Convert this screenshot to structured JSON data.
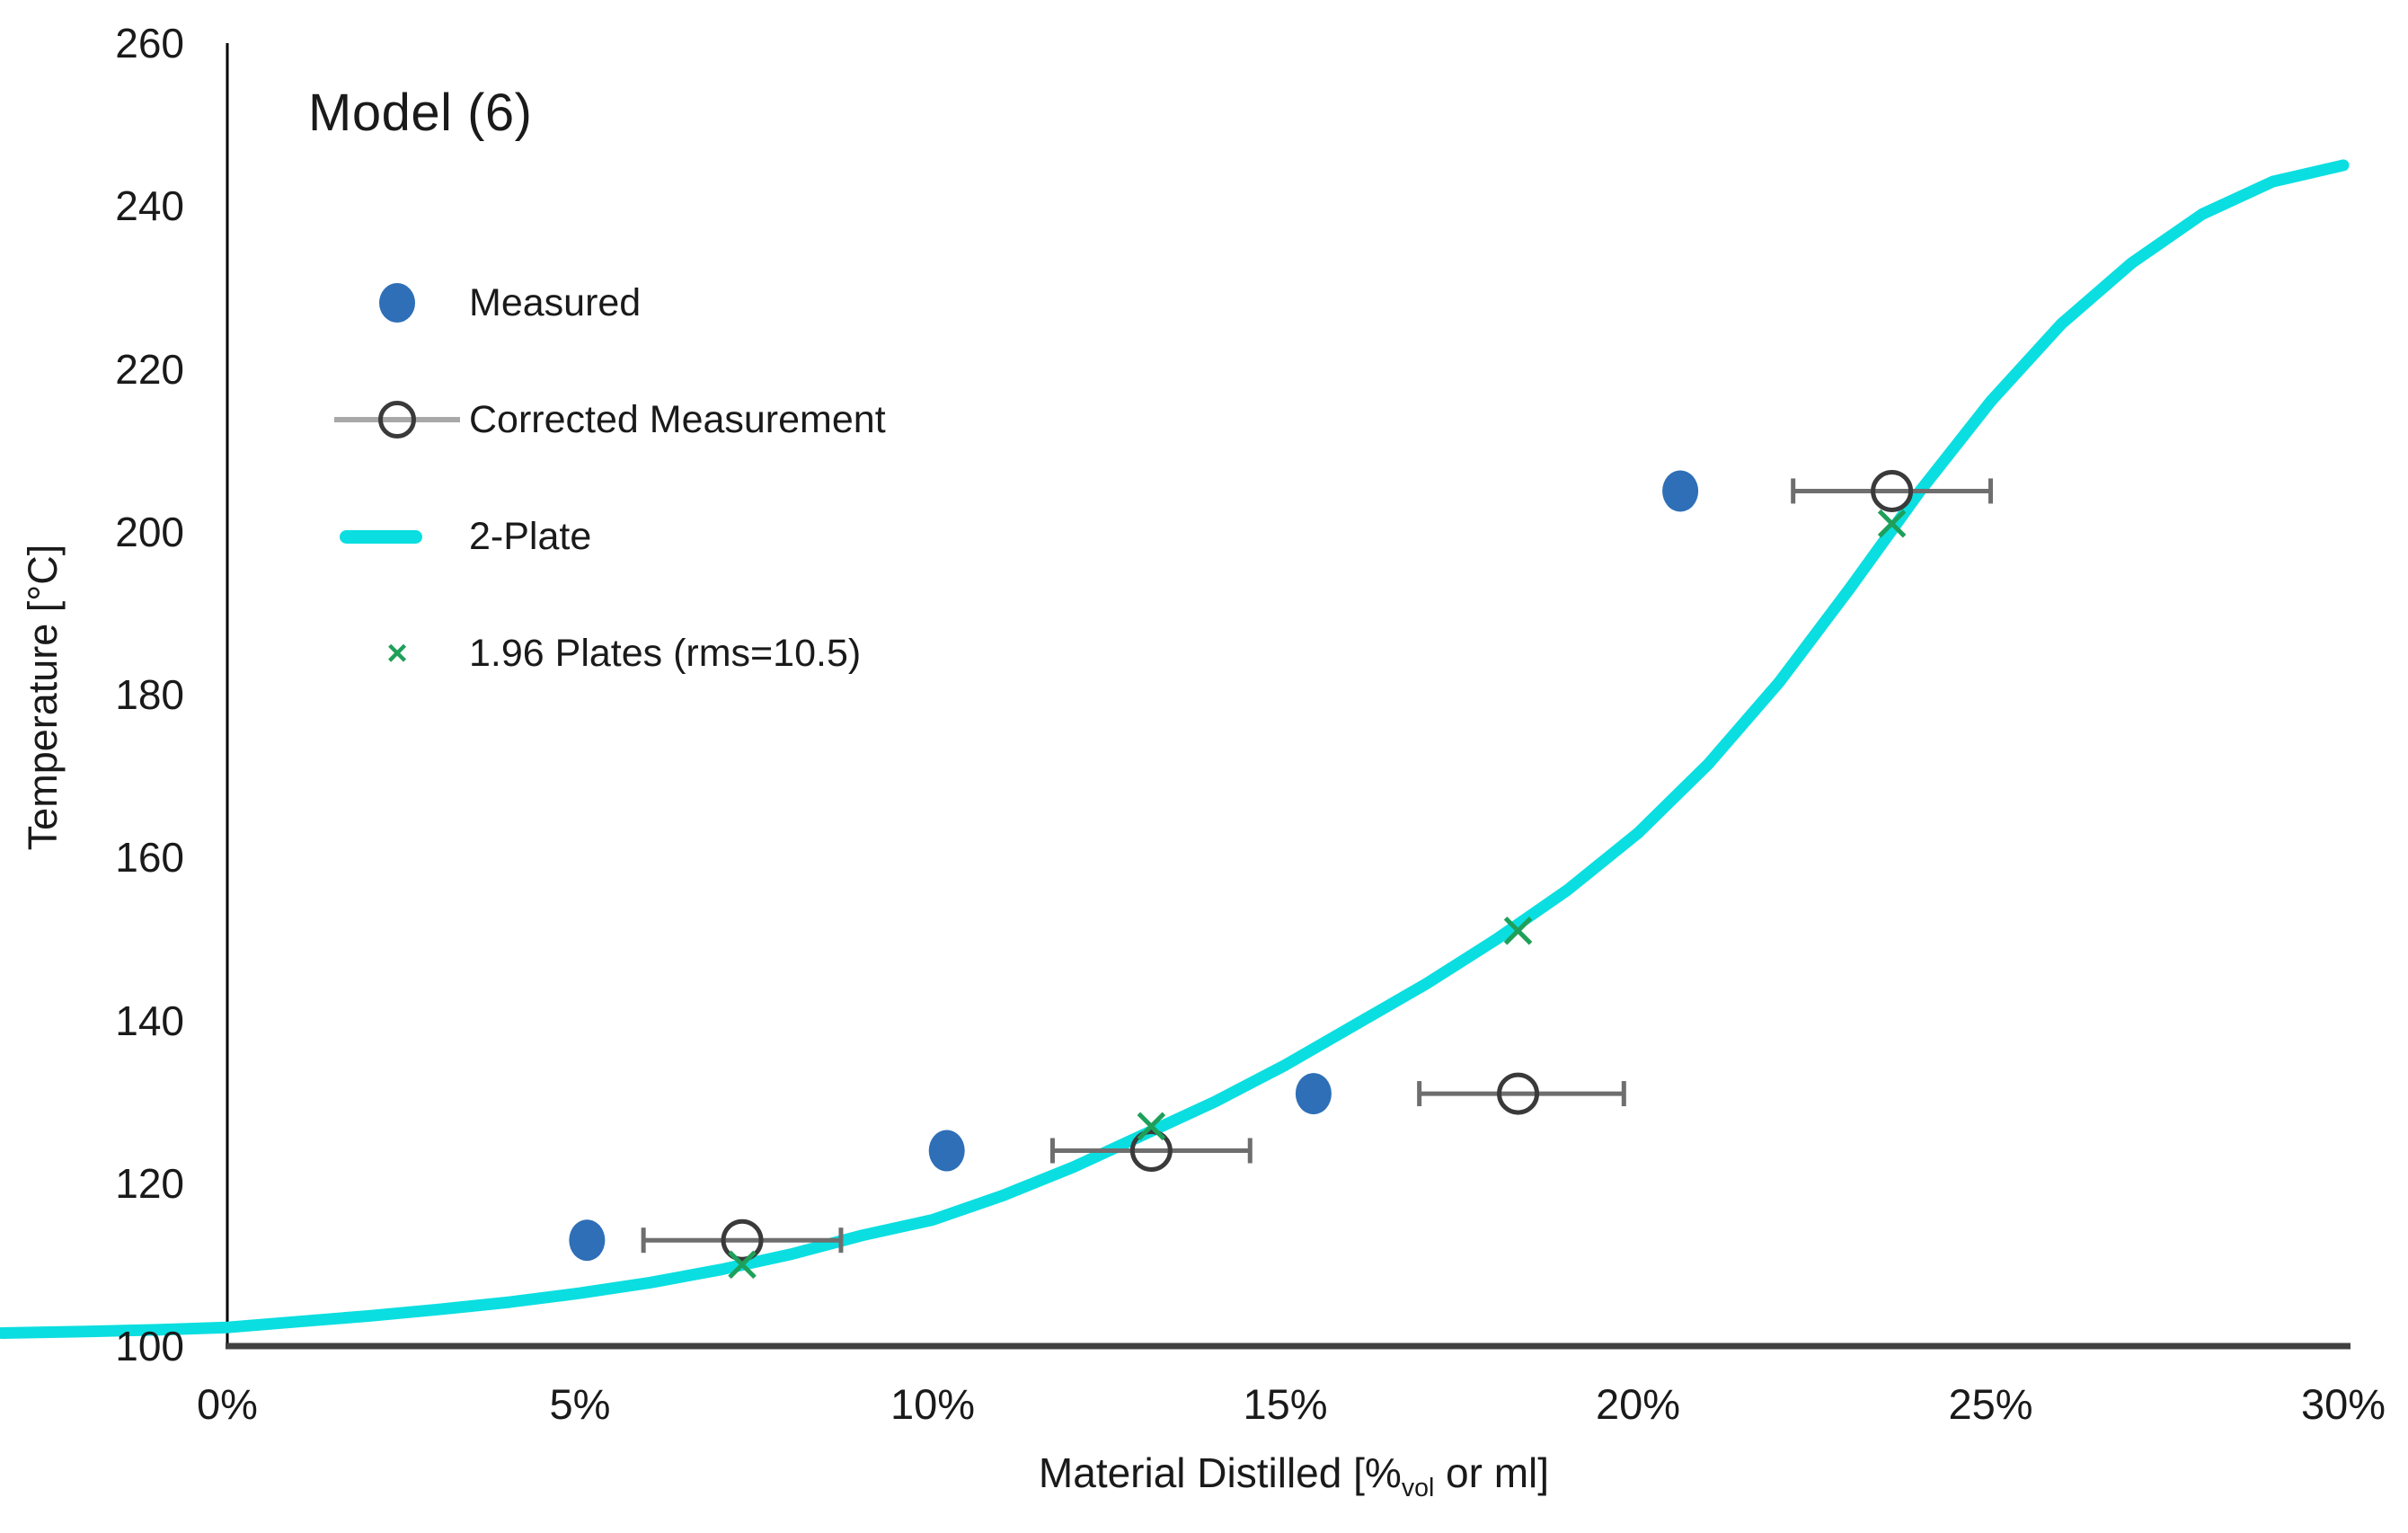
{
  "chart_data": {
    "type": "line",
    "title": "Model (6)",
    "ylabel": "Temperature [°C]",
    "xlabel_parts": {
      "prefix": "Material Distilled [%",
      "sub": "vol",
      "suffix": " or ml]"
    },
    "x_axis": {
      "min": 0,
      "max": 30,
      "unit": "percent",
      "tick_values": [
        0,
        5,
        10,
        15,
        20,
        25,
        30
      ],
      "ticks": [
        "0%",
        "5%",
        "10%",
        "15%",
        "20%",
        "25%",
        "30%"
      ]
    },
    "y_axis": {
      "min": 100,
      "max": 260,
      "tick_values": [
        260,
        240,
        220,
        200,
        180,
        160,
        140,
        120,
        100
      ],
      "ticks": [
        "260",
        "240",
        "220",
        "200",
        "180",
        "160",
        "140",
        "120",
        "100"
      ]
    },
    "grid": false,
    "legend_position": "upper-left-inside",
    "colors": {
      "measured_blue": "#2e6fb7",
      "corrected_circle": "#3a3a3a",
      "error_bar_gray": "#6e6e6e",
      "legend_line_gray": "#a8a8a8",
      "plate_cyan": "#0bdee0",
      "plates196_green": "#1fa05a",
      "y_axis_line": "#000000",
      "x_axis_line": "#404040",
      "text": "#1a1a1a"
    },
    "series": [
      {
        "name": "Measured",
        "type": "scatter",
        "marker": "filled-circle",
        "color": "#2e6fb7",
        "points": [
          [
            5.1,
            113
          ],
          [
            10.2,
            124
          ],
          [
            15.4,
            131
          ],
          [
            20.6,
            205
          ]
        ]
      },
      {
        "name": "Corrected Measurement",
        "type": "scatter",
        "marker": "open-circle-with-x-error-bar",
        "color": "#3a3a3a",
        "bar_color": "#6e6e6e",
        "x_error_approx": 1.4,
        "points_with_xerr_range": [
          [
            7.3,
            113,
            5.9,
            8.7
          ],
          [
            13.1,
            124,
            11.7,
            14.5
          ],
          [
            18.3,
            131,
            16.9,
            19.8
          ],
          [
            23.6,
            205,
            22.2,
            25.0
          ]
        ]
      },
      {
        "name": "2-Plate",
        "type": "line",
        "color": "#0bdee0",
        "points": [
          [
            -3.2,
            101.6
          ],
          [
            -2,
            101.8
          ],
          [
            -1,
            102.0
          ],
          [
            0,
            102.3
          ],
          [
            1,
            103.0
          ],
          [
            2,
            103.7
          ],
          [
            3,
            104.5
          ],
          [
            4,
            105.4
          ],
          [
            5,
            106.5
          ],
          [
            6,
            107.8
          ],
          [
            7,
            109.4
          ],
          [
            8,
            111.3
          ],
          [
            9,
            113.6
          ],
          [
            10,
            115.5
          ],
          [
            11,
            118.5
          ],
          [
            12,
            122.0
          ],
          [
            13,
            126.0
          ],
          [
            14,
            130.0
          ],
          [
            15,
            134.5
          ],
          [
            16,
            139.5
          ],
          [
            17,
            144.5
          ],
          [
            18,
            150.0
          ],
          [
            19,
            156.0
          ],
          [
            20,
            163.0
          ],
          [
            21,
            171.5
          ],
          [
            22,
            181.5
          ],
          [
            23,
            193.0
          ],
          [
            24,
            205.0
          ],
          [
            25,
            216.0
          ],
          [
            26,
            225.5
          ],
          [
            27,
            233.0
          ],
          [
            28,
            239.0
          ],
          [
            29,
            243.0
          ],
          [
            30,
            245.0
          ]
        ]
      },
      {
        "name": "1.96 Plates (rms=10.5)",
        "type": "scatter",
        "marker": "x",
        "color": "#1fa05a",
        "rms": 10.5,
        "points": [
          [
            7.3,
            110
          ],
          [
            13.1,
            127
          ],
          [
            18.3,
            151
          ],
          [
            23.6,
            201
          ]
        ]
      }
    ],
    "legend": [
      {
        "label": "Measured"
      },
      {
        "label": "Corrected Measurement"
      },
      {
        "label": "2-Plate"
      },
      {
        "label": "1.96 Plates (rms=10.5)"
      }
    ]
  }
}
